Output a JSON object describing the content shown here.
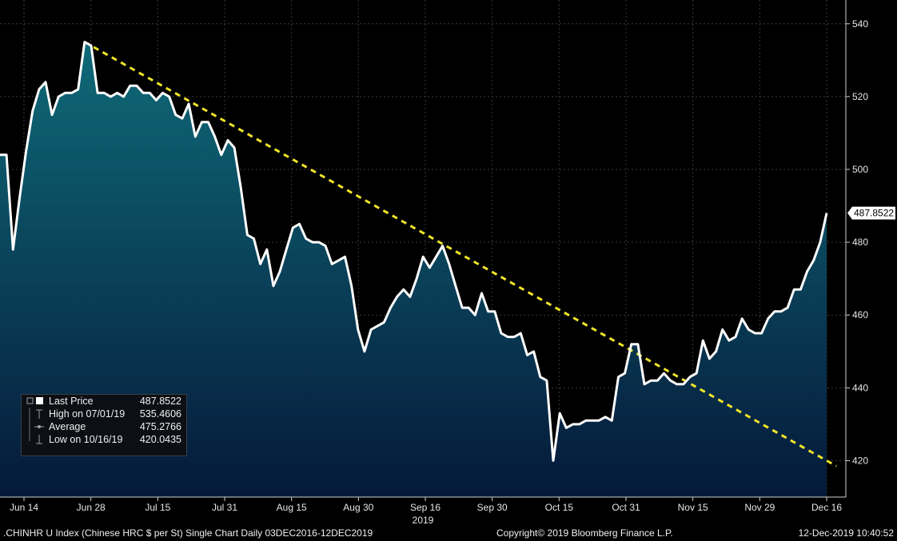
{
  "chart_data": {
    "type": "area",
    "title": ".CHINHR U Index (Chinese HRC $ per St) Single Chart",
    "x_ticks": [
      "Jun 14",
      "Jun 28",
      "Jul 15",
      "Jul 31",
      "Aug 15",
      "Aug 30",
      "Sep 16",
      "Sep 30",
      "Oct 15",
      "Oct 31",
      "Nov 15",
      "Nov 29",
      "Dec 16"
    ],
    "x_year_label": "2019",
    "y_ticks": [
      420,
      440,
      460,
      480,
      500,
      520,
      540
    ],
    "ylim": [
      410,
      545
    ],
    "grid": true,
    "last_value_label": "487.8522",
    "series": [
      {
        "values": [
          504,
          504,
          478,
          492,
          505,
          516,
          522,
          524,
          515,
          520,
          521,
          521,
          522,
          535,
          534,
          521,
          521,
          520,
          521,
          520,
          523,
          523,
          521,
          521,
          519,
          521,
          520,
          515,
          514,
          518,
          509,
          513,
          513,
          509,
          504,
          508,
          506,
          495,
          482,
          481,
          474,
          478,
          468,
          472,
          478,
          484,
          485,
          481,
          480,
          480,
          479,
          474,
          475,
          476,
          468,
          456,
          450,
          456,
          457,
          458,
          462,
          465,
          467,
          465,
          470,
          476,
          473,
          476,
          479,
          474,
          468,
          462,
          462,
          460,
          466,
          461,
          461,
          455,
          454,
          454,
          455,
          449,
          450,
          443,
          442,
          420,
          433,
          429,
          430,
          430,
          431,
          431,
          431,
          432,
          431,
          443,
          444,
          452,
          452,
          441,
          442,
          442,
          444,
          442,
          441,
          441,
          443,
          444,
          453,
          448,
          450,
          456,
          453,
          454,
          459,
          456,
          455,
          455,
          459,
          461,
          461,
          462,
          467,
          467,
          472,
          475,
          480,
          488
        ]
      }
    ],
    "trendline": {
      "start_index": 13,
      "start_value": 535,
      "end_value": 418.5,
      "end_overshoot": 1.5,
      "color": "#f0e52a"
    }
  },
  "legend": {
    "rows": [
      {
        "label": "Last Price",
        "value": "487.8522"
      },
      {
        "label": "High on 07/01/19",
        "value": "535.4606"
      },
      {
        "label": "Average",
        "value": "475.2766"
      },
      {
        "label": "Low on 10/16/19",
        "value": "420.0435"
      }
    ]
  },
  "footer": {
    "left": ".CHINHR U Index (Chinese HRC $ per St) Single Chart  Daily 03DEC2016-12DEC2019",
    "center": "Copyright© 2019 Bloomberg Finance L.P.",
    "right": "12-Dec-2019 10:40:52"
  },
  "colors": {
    "line": "#ffffff",
    "area_top": "#0f6a78",
    "area_bottom": "#05193a",
    "grid": "#3a3a3a",
    "trendline": "#f0e52a",
    "tag_bg": "#ffffff"
  }
}
